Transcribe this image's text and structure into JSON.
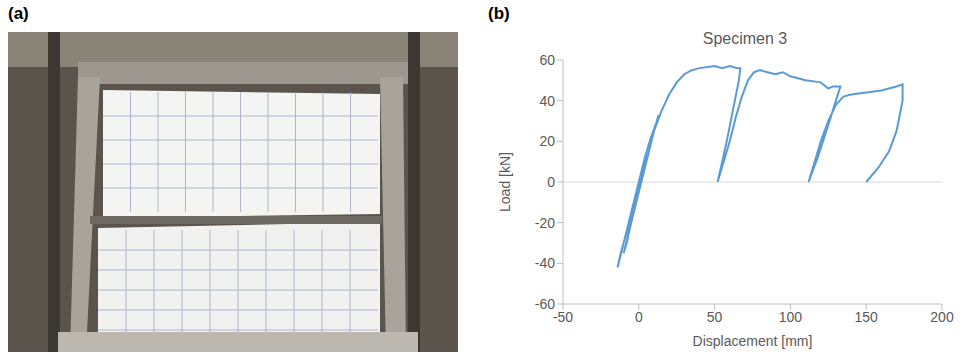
{
  "panel_labels": [
    "(a)",
    "(b)"
  ],
  "chart_data": {
    "type": "line",
    "title": "Specimen 3",
    "x_label": "Displacement [mm]",
    "y_label": "Load [kN]",
    "color": "#5b9bd5",
    "marker": "none",
    "grid": false,
    "xlim": [
      -50,
      200
    ],
    "xticks": [
      -50,
      0,
      50,
      100,
      150,
      200
    ],
    "ylim": [
      -60,
      60
    ],
    "yticks": [
      -60,
      -40,
      -20,
      0,
      20,
      40,
      60
    ],
    "x": [
      0,
      3,
      5,
      2,
      0,
      -4,
      -8,
      -12,
      -14,
      -10,
      -5,
      0,
      4,
      8,
      12,
      13,
      10,
      5,
      0,
      -5,
      -8,
      -10,
      -5,
      0,
      5,
      10,
      15,
      20,
      25,
      30,
      35,
      40,
      50,
      55,
      60,
      65,
      67,
      66,
      62,
      58,
      55,
      52,
      56,
      60,
      64,
      68,
      72,
      76,
      80,
      85,
      90,
      95,
      100,
      110,
      120,
      125,
      128,
      133,
      130,
      125,
      118,
      112,
      116,
      120,
      125,
      130,
      135,
      140,
      150,
      160,
      170,
      174,
      174,
      170,
      165,
      158,
      150
    ],
    "values": [
      0,
      8,
      14,
      5,
      -5,
      -15,
      -25,
      -35,
      -42,
      -30,
      -15,
      0,
      12,
      22,
      30,
      33,
      25,
      10,
      -3,
      -20,
      -30,
      -35,
      -20,
      -5,
      10,
      25,
      35,
      43,
      49,
      53,
      55,
      56,
      57,
      56,
      57,
      56,
      56,
      50,
      35,
      20,
      10,
      0,
      10,
      20,
      32,
      42,
      50,
      54,
      55,
      54,
      53,
      54,
      52,
      50,
      49,
      46,
      47,
      47,
      40,
      28,
      12,
      0,
      10,
      20,
      30,
      38,
      42,
      43,
      44,
      45,
      47,
      48,
      40,
      25,
      15,
      7,
      0
    ]
  }
}
